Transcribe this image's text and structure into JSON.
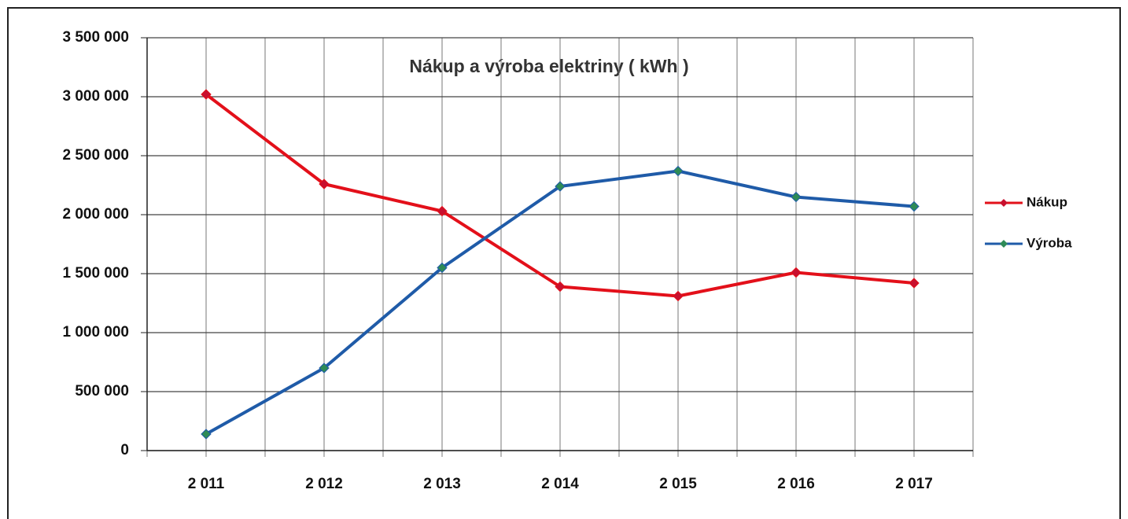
{
  "chart_data": {
    "type": "line",
    "title": "Nákup a výroba elektriny  ( kWh )",
    "categories": [
      "2 011",
      "2 012",
      "2 013",
      "2 014",
      "2 015",
      "2 016",
      "2 017"
    ],
    "series": [
      {
        "name": "Nákup",
        "color": "#e3101a",
        "marker_color": "#c8102e",
        "values": [
          3020000,
          2260000,
          2030000,
          1390000,
          1310000,
          1510000,
          1420000
        ]
      },
      {
        "name": "Výroba",
        "color": "#1f5ba8",
        "marker_color": "#2e8b57",
        "values": [
          140000,
          700000,
          1550000,
          2240000,
          2370000,
          2150000,
          2070000
        ]
      }
    ],
    "ylim": [
      0,
      3500000
    ],
    "yticks": [
      0,
      {
        "value": 500000,
        "label": "500 000"
      },
      {
        "value": 1000000,
        "label": "1 000 000"
      },
      {
        "value": 1500000,
        "label": "1 500 000"
      },
      {
        "value": 2000000,
        "label": "2 000 000"
      },
      {
        "value": 2500000,
        "label": "2 500 000"
      },
      {
        "value": 3000000,
        "label": "3 000 000"
      },
      {
        "value": 3500000,
        "label": "3 500 000"
      }
    ],
    "grid": true,
    "legend": "right"
  }
}
